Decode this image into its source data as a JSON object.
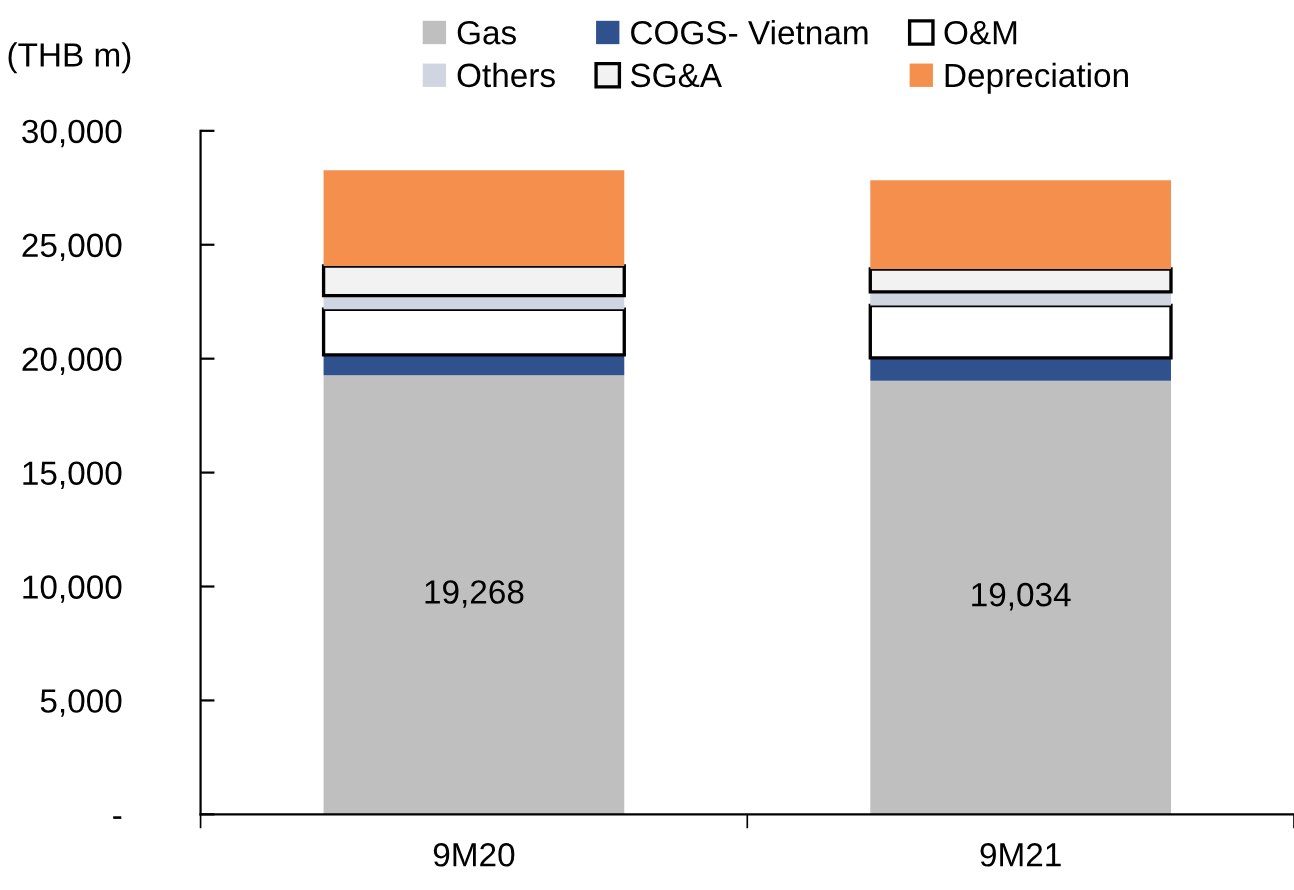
{
  "chart_data": {
    "type": "bar",
    "stacked": true,
    "ylabel": "(THB m)",
    "categories": [
      "9M20",
      "9M21"
    ],
    "series": [
      {
        "name": "Gas",
        "color": "#bfbfbf",
        "values": [
          19268,
          19034
        ],
        "value_labels": [
          "19,268",
          "19,034"
        ]
      },
      {
        "name": "COGS- Vietnam",
        "color": "#2f528f",
        "values": [
          900,
          1000
        ]
      },
      {
        "name": "O&M",
        "color": "#ffffff",
        "values": [
          2000,
          2300
        ]
      },
      {
        "name": "Others",
        "color": "#d0d5e2",
        "values": [
          600,
          600
        ]
      },
      {
        "name": "SG&A",
        "color": "#f2f2f2",
        "values": [
          1300,
          1000
        ]
      },
      {
        "name": "Depreciation",
        "color": "#f48f4e",
        "values": [
          4200,
          3900
        ]
      }
    ],
    "ylim": [
      0,
      30000
    ],
    "yticks": [
      {
        "value": 0,
        "label": "-"
      },
      {
        "value": 5000,
        "label": "5,000"
      },
      {
        "value": 10000,
        "label": "10,000"
      },
      {
        "value": 15000,
        "label": "15,000"
      },
      {
        "value": 20000,
        "label": "20,000"
      },
      {
        "value": 25000,
        "label": "25,000"
      },
      {
        "value": 30000,
        "label": "30,000"
      }
    ],
    "grid": false,
    "legend": "top"
  }
}
